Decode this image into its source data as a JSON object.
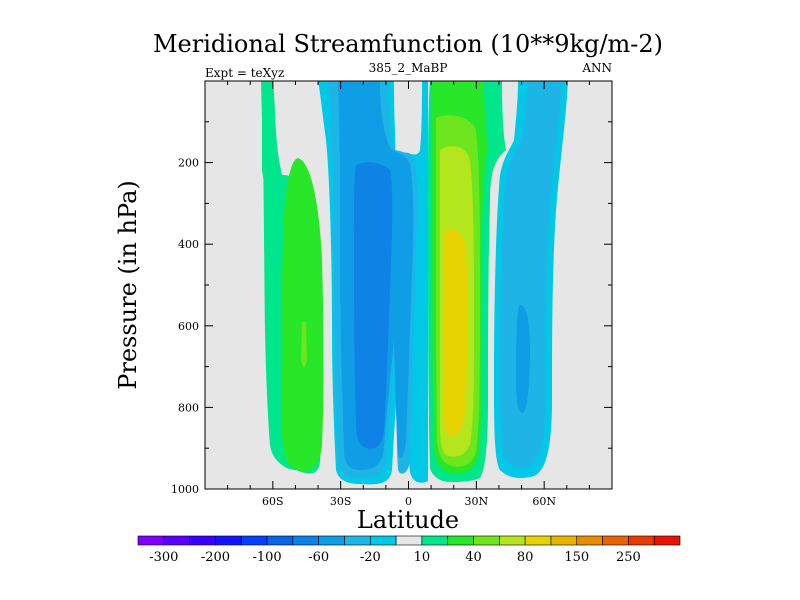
{
  "chart_data": {
    "type": "contour",
    "title": "Meridional Streamfunction (10**9kg/m-2)",
    "left_label": "Expt = teXyz",
    "center_label": "385_2_MaBP",
    "right_label": "ANN",
    "xlabel": "Latitude",
    "ylabel": "Pressure (in hPa)",
    "xlim": [
      -90,
      90
    ],
    "ylim": [
      1000,
      0
    ],
    "x_ticks": [
      {
        "value": -60,
        "label": "60S"
      },
      {
        "value": -30,
        "label": "30S"
      },
      {
        "value": 0,
        "label": "0"
      },
      {
        "value": 30,
        "label": "30N"
      },
      {
        "value": 60,
        "label": "60N"
      }
    ],
    "y_ticks": [
      {
        "value": 200,
        "label": "200"
      },
      {
        "value": 400,
        "label": "400"
      },
      {
        "value": 600,
        "label": "600"
      },
      {
        "value": 800,
        "label": "800"
      },
      {
        "value": 1000,
        "label": "1000"
      }
    ],
    "colorbar": {
      "levels": [
        -300,
        -250,
        -200,
        -150,
        -100,
        -80,
        -60,
        -40,
        -20,
        -10,
        10,
        20,
        40,
        60,
        80,
        100,
        150,
        200,
        250,
        300
      ],
      "labeled_levels": [
        -300,
        -200,
        -100,
        -60,
        -20,
        10,
        40,
        80,
        150,
        250
      ],
      "colors": [
        "#8000ff",
        "#5b00ff",
        "#3a00ff",
        "#1414ff",
        "#0040ff",
        "#0a64e6",
        "#0f82e6",
        "#0f9ee6",
        "#1eb4e6",
        "#00c8e6",
        "#e6e6e6",
        "#00e68c",
        "#28e628",
        "#6ee61e",
        "#b4e61e",
        "#e6d200",
        "#e6b400",
        "#e68c00",
        "#e66400",
        "#e63c00",
        "#e61400"
      ]
    },
    "background_color": "#e6e6e6"
  }
}
